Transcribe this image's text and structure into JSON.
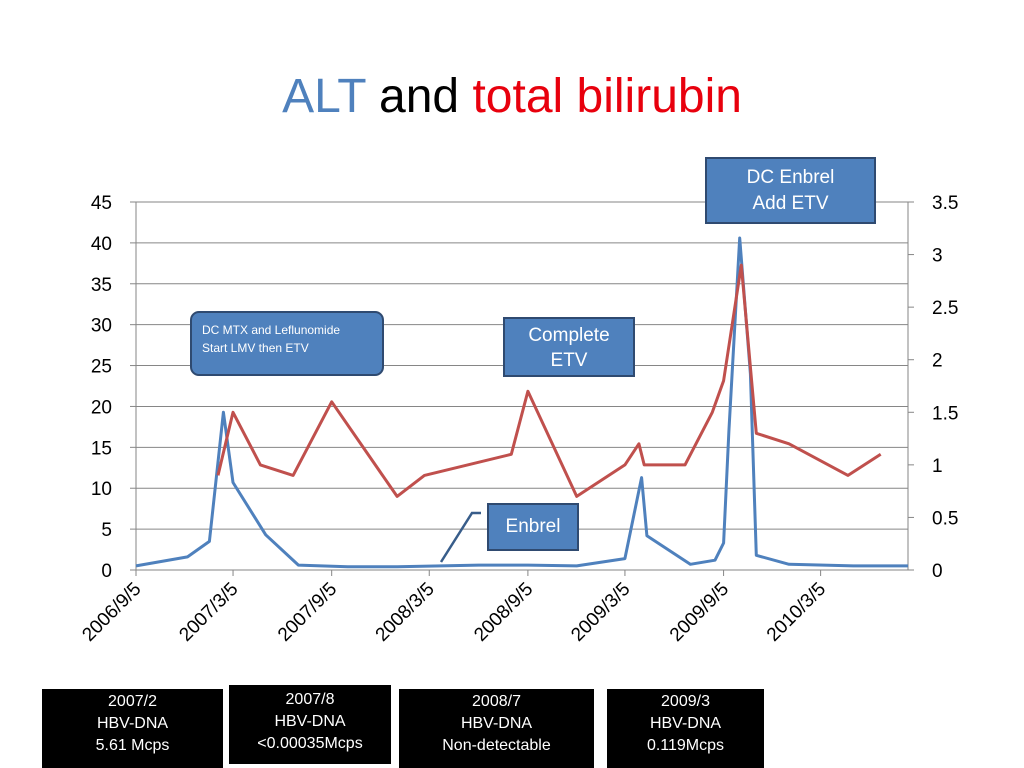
{
  "title": {
    "part1": "ALT",
    "part2": "and",
    "part3": "total bilirubin"
  },
  "chart_data": {
    "type": "line",
    "x_tick_labels": [
      "2006/9/5",
      "2007/3/5",
      "2007/9/5",
      "2008/3/5",
      "2008/9/5",
      "2009/3/5",
      "2009/9/5",
      "2010/3/5"
    ],
    "xlim": [
      "2006-09-05",
      "2010-08-15"
    ],
    "y_left": {
      "lim": [
        0,
        45
      ],
      "ticks": [
        0,
        5,
        10,
        15,
        20,
        25,
        30,
        35,
        40,
        45
      ]
    },
    "y_right": {
      "lim": [
        0,
        3.5
      ],
      "ticks": [
        "0",
        "0.5",
        "1",
        "1.5",
        "2",
        "2.5",
        "3",
        "3.5"
      ]
    },
    "grid": true,
    "legend": "none",
    "series": [
      {
        "color": "#4f81bd",
        "axis": "left",
        "points": [
          [
            "2006-09-05",
            0.5
          ],
          [
            "2006-12-10",
            1.6
          ],
          [
            "2007-01-20",
            3.5
          ],
          [
            "2007-02-15",
            19.3
          ],
          [
            "2007-03-05",
            10.7
          ],
          [
            "2007-05-05",
            4.3
          ],
          [
            "2007-07-05",
            0.6
          ],
          [
            "2007-10-05",
            0.4
          ],
          [
            "2008-01-05",
            0.4
          ],
          [
            "2008-06-05",
            0.6
          ],
          [
            "2008-09-05",
            0.6
          ],
          [
            "2008-12-05",
            0.5
          ],
          [
            "2009-03-05",
            1.4
          ],
          [
            "2009-04-05",
            11.3
          ],
          [
            "2009-04-15",
            4.2
          ],
          [
            "2009-07-05",
            0.7
          ],
          [
            "2009-08-20",
            1.2
          ],
          [
            "2009-09-05",
            3.3
          ],
          [
            "2009-09-15",
            17.0
          ],
          [
            "2009-10-05",
            40.6
          ],
          [
            "2009-10-25",
            24.0
          ],
          [
            "2009-11-05",
            1.8
          ],
          [
            "2010-01-05",
            0.7
          ],
          [
            "2010-05-05",
            0.5
          ],
          [
            "2010-08-15",
            0.5
          ]
        ]
      },
      {
        "color": "#c0504d",
        "axis": "right",
        "points": [
          [
            "2007-02-05",
            0.9
          ],
          [
            "2007-03-05",
            1.5
          ],
          [
            "2007-04-25",
            1.0
          ],
          [
            "2007-06-25",
            0.9
          ],
          [
            "2007-09-05",
            1.6
          ],
          [
            "2008-01-05",
            0.7
          ],
          [
            "2008-02-25",
            0.9
          ],
          [
            "2008-08-05",
            1.1
          ],
          [
            "2008-09-05",
            1.7
          ],
          [
            "2008-12-05",
            0.7
          ],
          [
            "2009-03-05",
            1.0
          ],
          [
            "2009-03-31",
            1.2
          ],
          [
            "2009-04-10",
            1.0
          ],
          [
            "2009-06-25",
            1.0
          ],
          [
            "2009-08-15",
            1.5
          ],
          [
            "2009-09-05",
            1.8
          ],
          [
            "2009-10-08",
            2.9
          ],
          [
            "2009-11-05",
            1.3
          ],
          [
            "2010-01-05",
            1.2
          ],
          [
            "2010-04-25",
            0.9
          ],
          [
            "2010-06-25",
            1.1
          ]
        ]
      }
    ]
  },
  "annotations": {
    "dc_mtx": {
      "line1": "DC MTX and Leflunomide",
      "line2": "Start LMV then ETV"
    },
    "complete_etv": {
      "line1": "Complete",
      "line2": "ETV"
    },
    "enbrel": {
      "label": "Enbrel"
    },
    "dc_enbrel": {
      "line1": "DC Enbrel",
      "line2": "Add ETV"
    }
  },
  "hbv_boxes": [
    {
      "date": "2007/2",
      "label": "HBV-DNA",
      "value": "5.61 Mcps"
    },
    {
      "date": "2007/8",
      "label": "HBV-DNA",
      "value": "<0.00035Mcps"
    },
    {
      "date": "2008/7",
      "label": "HBV-DNA",
      "value": "Non-detectable"
    },
    {
      "date": "2009/3",
      "label": "HBV-DNA",
      "value": "0.119Mcps"
    }
  ]
}
